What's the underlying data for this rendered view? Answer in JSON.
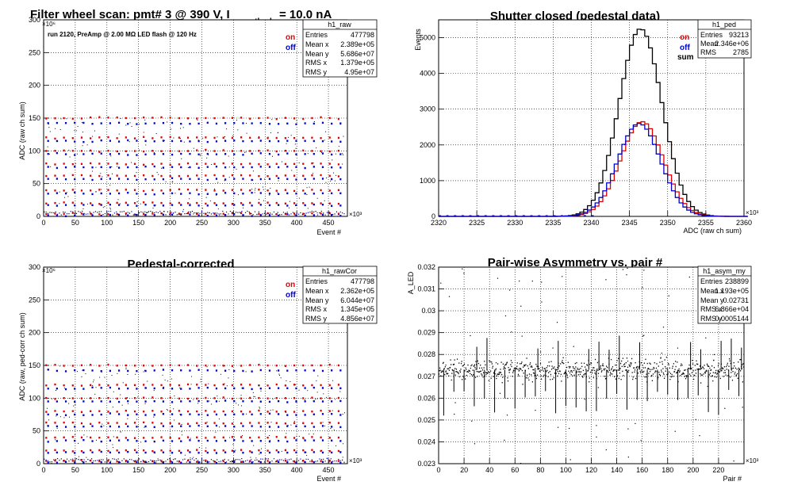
{
  "colors": {
    "on": "#e00000",
    "off": "#0000cc",
    "sum": "#000000",
    "grid": "#000000"
  },
  "chart_data": [
    {
      "id": "p1",
      "type": "scatter",
      "title": "Filter wheel scan: pmt#   3 @   390 V, I",
      "title_sub": "cathode",
      "title_tail": "= 10.0 nA",
      "note": "run 2120, PreAmp @ 2.00 MΩ  LED flash @  120 Hz",
      "xlabel": "Event #",
      "ylabel": "ADC (raw ch sum)",
      "x_exp": "×10³",
      "y_exp": "×10⁶",
      "xlim": [
        0,
        480
      ],
      "ylim": [
        0,
        300
      ],
      "x_ticks": [
        "0",
        "50",
        "100",
        "150",
        "200",
        "250",
        "300",
        "350",
        "400",
        "450"
      ],
      "y_ticks": [
        "0",
        "50",
        "100",
        "150",
        "200",
        "250",
        "300"
      ],
      "legend": [
        "on",
        "off"
      ],
      "series": [
        {
          "name": "on",
          "plateaus": [
            150,
            120,
            100,
            80,
            62,
            40,
            20,
            4
          ]
        },
        {
          "name": "off",
          "plateaus": [
            142,
            115,
            95,
            75,
            57,
            35,
            17,
            2
          ]
        }
      ],
      "stats": {
        "name": "h1_raw",
        "rows": [
          [
            "Entries",
            "477798"
          ],
          [
            "Mean x",
            "2.389e+05"
          ],
          [
            "Mean y",
            "5.686e+07"
          ],
          [
            "RMS x",
            "1.379e+05"
          ],
          [
            "RMS y",
            "4.95e+07"
          ]
        ]
      }
    },
    {
      "id": "p2",
      "type": "line",
      "title": "Shutter closed (pedestal data)",
      "xlabel": "ADC (raw ch sum)",
      "ylabel": "Events",
      "x_exp": "×10³",
      "xlim": [
        2320,
        2360
      ],
      "ylim": [
        0,
        5500
      ],
      "x_ticks": [
        "2320",
        "2325",
        "2330",
        "2335",
        "2340",
        "2345",
        "2350",
        "2355",
        "2360"
      ],
      "y_ticks": [
        "0",
        "1000",
        "2000",
        "3000",
        "4000",
        "5000"
      ],
      "legend": [
        "on",
        "off",
        "sum"
      ],
      "series": [
        {
          "name": "sum",
          "peak_x": 2346.2,
          "peak_y": 5250,
          "sigma": 2.8
        },
        {
          "name": "on",
          "peak_x": 2346.4,
          "peak_y": 2650,
          "sigma": 2.8
        },
        {
          "name": "off",
          "peak_x": 2346.0,
          "peak_y": 2600,
          "sigma": 2.8
        }
      ],
      "stats": {
        "name": "h1_ped",
        "rows": [
          [
            "Entries",
            "93213"
          ],
          [
            "Mean",
            "2.346e+06"
          ],
          [
            "RMS",
            "2785"
          ]
        ]
      }
    },
    {
      "id": "p3",
      "type": "scatter",
      "title": "Pedestal-corrected",
      "xlabel": "Event #",
      "ylabel": "ADC (raw, ped-corr ch sum)",
      "x_exp": "×10³",
      "y_exp": "×10⁶",
      "xlim": [
        0,
        480
      ],
      "ylim": [
        0,
        300
      ],
      "x_ticks": [
        "0",
        "50",
        "100",
        "150",
        "200",
        "250",
        "300",
        "350",
        "400",
        "450"
      ],
      "y_ticks": [
        "0",
        "50",
        "100",
        "150",
        "200",
        "250",
        "300"
      ],
      "legend": [
        "on",
        "off"
      ],
      "series": [
        {
          "name": "on",
          "plateaus": [
            150,
            120,
            100,
            80,
            62,
            40,
            20,
            4
          ]
        },
        {
          "name": "off",
          "plateaus": [
            142,
            115,
            95,
            75,
            57,
            35,
            17,
            2
          ]
        }
      ],
      "stats": {
        "name": "h1_rawCor",
        "rows": [
          [
            "Entries",
            "477798"
          ],
          [
            "Mean x",
            "2.362e+05"
          ],
          [
            "Mean y",
            "6.044e+07"
          ],
          [
            "RMS x",
            "1.345e+05"
          ],
          [
            "RMS y",
            "4.856e+07"
          ]
        ]
      }
    },
    {
      "id": "p4",
      "type": "scatter",
      "title": "Pair-wise Asymmetry vs. pair #",
      "xlabel": "Pair #",
      "ylabel": "A_LED",
      "x_exp": "×10³",
      "xlim": [
        0,
        240
      ],
      "ylim": [
        0.023,
        0.032
      ],
      "x_ticks": [
        "0",
        "20",
        "40",
        "60",
        "80",
        "100",
        "120",
        "140",
        "160",
        "180",
        "200",
        "220"
      ],
      "y_ticks": [
        "0.023",
        "0.024",
        "0.025",
        "0.026",
        "0.027",
        "0.028",
        "0.029",
        "0.03",
        "0.031",
        "0.032"
      ],
      "band": {
        "center": 0.0273,
        "halfwidth": 0.0006
      },
      "stats": {
        "name": "h1_asym_my",
        "rows": [
          [
            "Entries",
            "238899"
          ],
          [
            "Mean x",
            "1.193e+05"
          ],
          [
            "Mean y",
            "0.02731"
          ],
          [
            "RMS x",
            "6.866e+04"
          ],
          [
            "RMS y",
            "0.0005144"
          ]
        ]
      }
    }
  ]
}
